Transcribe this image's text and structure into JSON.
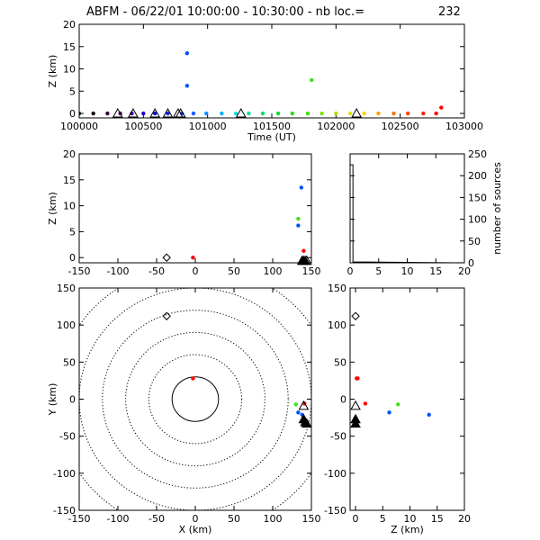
{
  "title": "ABFM - 06/22/01 10:00:00 - 10:30:00 - nb loc.=",
  "nb_loc": "232",
  "colors": {
    "axes": "#000000",
    "background": "#ffffff"
  },
  "chart_data": [
    {
      "id": "time_height",
      "type": "scatter",
      "xlabel": "Time (UT)",
      "ylabel": "Z (km)",
      "xlim": [
        100000,
        103000
      ],
      "ylim": [
        -1,
        20
      ],
      "xticks": [
        100000,
        100500,
        101000,
        101500,
        102000,
        102500,
        103000
      ],
      "yticks": [
        0,
        5,
        10,
        15,
        20
      ],
      "points": [
        {
          "x": 100000,
          "y": 0,
          "c": "#000000"
        },
        {
          "x": 100110,
          "y": 0,
          "c": "#1a001a"
        },
        {
          "x": 100220,
          "y": 0,
          "c": "#3a0040"
        },
        {
          "x": 100320,
          "y": 0,
          "c": "#5a0060"
        },
        {
          "x": 100410,
          "y": 0,
          "c": "#4000a0"
        },
        {
          "x": 100500,
          "y": 0,
          "c": "#2000c0"
        },
        {
          "x": 100590,
          "y": 0,
          "c": "#1010e0"
        },
        {
          "x": 100690,
          "y": 0,
          "c": "#1020e0"
        },
        {
          "x": 100800,
          "y": 0,
          "c": "#0040ff"
        },
        {
          "x": 100840,
          "y": 13.5,
          "c": "#0050ff"
        },
        {
          "x": 100840,
          "y": 6.2,
          "c": "#0050ff"
        },
        {
          "x": 100890,
          "y": 0,
          "c": "#0060ff"
        },
        {
          "x": 100990,
          "y": 0,
          "c": "#0090ff"
        },
        {
          "x": 101110,
          "y": 0,
          "c": "#00b0ff"
        },
        {
          "x": 101220,
          "y": 0,
          "c": "#00e0e0"
        },
        {
          "x": 101320,
          "y": 0,
          "c": "#00e0a0"
        },
        {
          "x": 101430,
          "y": 0,
          "c": "#00e060"
        },
        {
          "x": 101550,
          "y": 0,
          "c": "#00e030"
        },
        {
          "x": 101660,
          "y": 0,
          "c": "#20e000"
        },
        {
          "x": 101780,
          "y": 0,
          "c": "#40e000"
        },
        {
          "x": 101810,
          "y": 7.5,
          "c": "#40e020"
        },
        {
          "x": 101890,
          "y": 0,
          "c": "#80e000"
        },
        {
          "x": 102000,
          "y": 0,
          "c": "#b0e000"
        },
        {
          "x": 102110,
          "y": 0,
          "c": "#e0e000"
        },
        {
          "x": 102220,
          "y": 0,
          "c": "#ffd000"
        },
        {
          "x": 102330,
          "y": 0,
          "c": "#ffa000"
        },
        {
          "x": 102450,
          "y": 0,
          "c": "#ff7000"
        },
        {
          "x": 102560,
          "y": 0,
          "c": "#ff4000"
        },
        {
          "x": 102680,
          "y": 0,
          "c": "#ff2000"
        },
        {
          "x": 102780,
          "y": 0,
          "c": "#ff0000"
        },
        {
          "x": 102820,
          "y": 1.3,
          "c": "#ff0000"
        }
      ],
      "markers": [
        {
          "x": 100300,
          "y": 0,
          "shape": "triangle"
        },
        {
          "x": 100420,
          "y": 0,
          "shape": "triangle"
        },
        {
          "x": 100590,
          "y": 0,
          "shape": "triangle"
        },
        {
          "x": 100690,
          "y": 0,
          "shape": "triangle"
        },
        {
          "x": 100770,
          "y": 0,
          "shape": "triangle"
        },
        {
          "x": 101260,
          "y": 0,
          "shape": "triangle"
        },
        {
          "x": 102160,
          "y": 0,
          "shape": "triangle"
        },
        {
          "x": 100790,
          "y": 0,
          "shape": "triangle"
        }
      ]
    },
    {
      "id": "x_height",
      "type": "scatter",
      "xlabel": "",
      "ylabel": "Z (km)",
      "xlim": [
        -150,
        150
      ],
      "ylim": [
        -1,
        20
      ],
      "xticks": [
        -150,
        -100,
        -50,
        0,
        50,
        100,
        150
      ],
      "yticks": [
        0,
        5,
        10,
        15,
        20
      ],
      "points": [
        {
          "x": -3,
          "y": 0,
          "c": "#ff0000"
        },
        {
          "x": 137,
          "y": 13.5,
          "c": "#0050ff"
        },
        {
          "x": 133,
          "y": 7.5,
          "c": "#40e020"
        },
        {
          "x": 133,
          "y": 6.2,
          "c": "#0050ff"
        },
        {
          "x": 140,
          "y": 1.3,
          "c": "#ff0000"
        }
      ],
      "markers": [
        {
          "x": -37,
          "y": 0,
          "shape": "diamond"
        },
        {
          "x": 138,
          "y": -0.6,
          "shape": "triangle-filled"
        },
        {
          "x": 140,
          "y": -0.6,
          "shape": "triangle-filled"
        },
        {
          "x": 142,
          "y": -0.6,
          "shape": "triangle-filled"
        },
        {
          "x": 144,
          "y": -0.6,
          "shape": "triangle"
        }
      ]
    },
    {
      "id": "height_histogram",
      "type": "line",
      "xlabel": "",
      "ylabel": "number of sources",
      "xlim": [
        0,
        20
      ],
      "ylim": [
        0,
        250
      ],
      "xticks": [
        0,
        5,
        10,
        15,
        20
      ],
      "yticks": [
        0,
        50,
        100,
        150,
        200,
        250
      ],
      "x": [
        0,
        0.5,
        0.5,
        20
      ],
      "values": [
        225,
        225,
        2,
        0
      ]
    },
    {
      "id": "plan_view",
      "type": "scatter",
      "xlabel": "X (km)",
      "ylabel": "Y (km)",
      "xlim": [
        -150,
        150
      ],
      "ylim": [
        -150,
        150
      ],
      "xticks": [
        -150,
        -100,
        -50,
        0,
        50,
        100,
        150
      ],
      "yticks": [
        -150,
        -100,
        -50,
        0,
        50,
        100,
        150
      ],
      "range_rings": [
        30,
        60,
        90,
        120,
        150,
        180
      ],
      "points": [
        {
          "x": -3,
          "y": 28,
          "c": "#ff0000"
        },
        {
          "x": 130,
          "y": -7,
          "c": "#40e020"
        },
        {
          "x": 133,
          "y": -18,
          "c": "#0050ff"
        },
        {
          "x": 138,
          "y": -21,
          "c": "#0050ff"
        },
        {
          "x": 141,
          "y": -6,
          "c": "#ff0000"
        }
      ],
      "markers": [
        {
          "x": -37,
          "y": 112,
          "shape": "diamond"
        },
        {
          "x": 140,
          "y": -9,
          "shape": "triangle"
        },
        {
          "x": 140,
          "y": -27,
          "shape": "triangle-filled"
        },
        {
          "x": 142,
          "y": -31,
          "shape": "triangle-filled"
        },
        {
          "x": 144,
          "y": -33,
          "shape": "triangle-filled"
        }
      ]
    },
    {
      "id": "z_y",
      "type": "scatter",
      "xlabel": "Z (km)",
      "ylabel": "",
      "xlim": [
        -1,
        20
      ],
      "ylim": [
        -150,
        150
      ],
      "xticks": [
        0,
        5,
        10,
        15,
        20
      ],
      "yticks": [
        -150,
        -100,
        -50,
        0,
        50,
        100,
        150
      ],
      "points": [
        {
          "x": 0.2,
          "y": 28,
          "c": "#ff0000"
        },
        {
          "x": 0.4,
          "y": 28,
          "c": "#ff0000"
        },
        {
          "x": 1.8,
          "y": -6,
          "c": "#ff0000"
        },
        {
          "x": 6.2,
          "y": -18,
          "c": "#0050ff"
        },
        {
          "x": 7.8,
          "y": -7,
          "c": "#40e020"
        },
        {
          "x": 13.5,
          "y": -21,
          "c": "#0050ff"
        }
      ],
      "markers": [
        {
          "x": 0,
          "y": 112,
          "shape": "diamond"
        },
        {
          "x": 0,
          "y": -9,
          "shape": "triangle"
        },
        {
          "x": 0,
          "y": -27,
          "shape": "triangle-filled"
        },
        {
          "x": 0,
          "y": -33,
          "shape": "triangle-filled"
        }
      ]
    }
  ]
}
